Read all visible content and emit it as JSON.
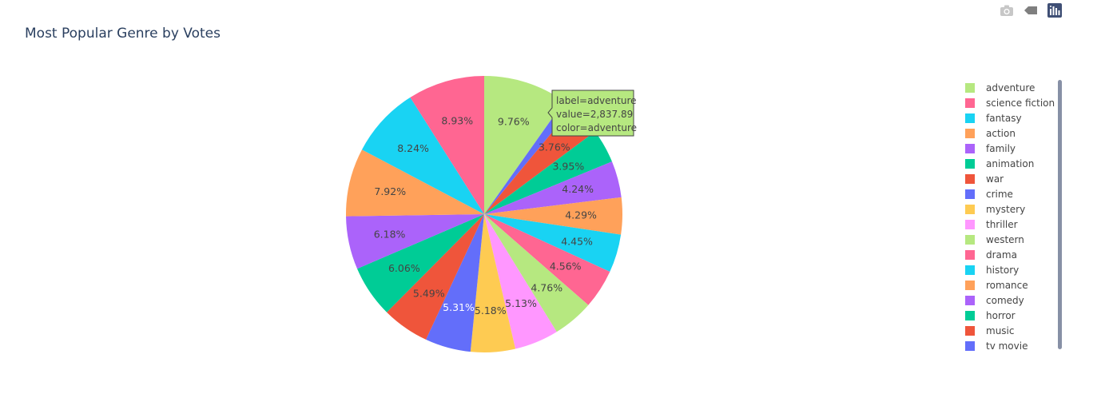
{
  "toolbar": {
    "camera_icon": "camera-icon",
    "tag_icon": "tag-icon",
    "plotly_logo_icon": "plotly-logo-icon"
  },
  "chart_data": {
    "type": "pie",
    "title": "Most Popular Genre by Votes",
    "legend_position": "right",
    "labels": [
      "adventure",
      "science fiction",
      "fantasy",
      "action",
      "family",
      "animation",
      "war",
      "crime",
      "mystery",
      "thriller",
      "western",
      "drama",
      "history",
      "romance",
      "comedy",
      "horror",
      "music",
      "tv movie"
    ],
    "colors": [
      "#b6e880",
      "#ff6692",
      "#19d3f3",
      "#ffa15a",
      "#ab63fa",
      "#00cc96",
      "#ef553b",
      "#636efa",
      "#fecb52",
      "#ff97ff",
      "#b6e880",
      "#ff6692",
      "#19d3f3",
      "#ffa15a",
      "#ab63fa",
      "#00cc96",
      "#ef553b",
      "#636efa"
    ],
    "slice_order_clockwise": [
      "adventure",
      "tv movie",
      "music",
      "horror",
      "comedy",
      "romance",
      "history",
      "drama",
      "western",
      "thriller",
      "mystery",
      "crime",
      "war",
      "animation",
      "family",
      "action",
      "fantasy",
      "science fiction"
    ],
    "slice_values_clockwise": [
      9.76,
      1.2,
      3.76,
      3.95,
      4.24,
      4.29,
      4.45,
      4.56,
      4.76,
      5.13,
      5.18,
      5.31,
      5.49,
      6.06,
      6.18,
      7.92,
      8.24,
      8.93
    ],
    "slice_labels_clockwise": [
      "9.76%",
      "",
      "3.76%",
      "3.95%",
      "4.24%",
      "4.29%",
      "4.45%",
      "4.56%",
      "4.76%",
      "5.13%",
      "5.18%",
      "5.31%",
      "5.49%",
      "6.06%",
      "6.18%",
      "7.92%",
      "8.24%",
      "8.93%"
    ],
    "hover": {
      "label": "adventure",
      "lines": [
        "label=adventure",
        "value=2,837.89",
        "color=adventure"
      ]
    }
  }
}
